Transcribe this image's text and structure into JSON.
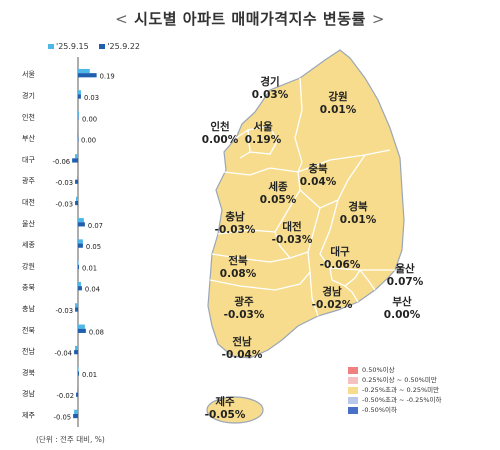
{
  "title": "시도별 아파트 매매가격지수 변동률",
  "title_left": "<",
  "title_right": ">",
  "unit_note": "(단위 : 전주 대비, %)",
  "colors": {
    "prev_series": "#4db8e8",
    "curr_series": "#1f5fae",
    "map_fill": "#f6dc8c",
    "map_stroke": "#ffffff",
    "map_outline": "#7a8ca8"
  },
  "chart_data": {
    "type": "bar",
    "orientation": "horizontal",
    "series": [
      {
        "name": "'25.9.15",
        "color": "#4db8e8",
        "values": [
          0.12,
          0.03,
          0.01,
          -0.01,
          -0.03,
          -0.01,
          -0.02,
          0.06,
          0.05,
          0.0,
          0.03,
          -0.03,
          0.07,
          -0.03,
          0.0,
          -0.01,
          -0.04
        ]
      },
      {
        "name": "'25.9.22",
        "color": "#1f5fae",
        "values": [
          0.19,
          0.03,
          0.0,
          0.0,
          -0.06,
          -0.03,
          -0.03,
          0.07,
          0.05,
          0.01,
          0.04,
          -0.03,
          0.08,
          -0.04,
          0.01,
          -0.02,
          -0.05
        ]
      }
    ],
    "categories": [
      "서울",
      "경기",
      "인천",
      "부산",
      "대구",
      "광주",
      "대전",
      "울산",
      "세종",
      "강원",
      "충북",
      "충남",
      "전북",
      "전남",
      "경북",
      "경남",
      "제주"
    ],
    "value_labels": [
      "0.19",
      "0.03",
      "0.00",
      "0.00",
      "-0.06",
      "-0.03",
      "-0.03",
      "0.07",
      "0.05",
      "0.01",
      "0.04",
      "-0.03",
      "0.08",
      "-0.04",
      "0.01",
      "-0.02",
      "-0.05"
    ]
  },
  "map": {
    "regions": [
      {
        "name": "경기",
        "value": "0.03%"
      },
      {
        "name": "강원",
        "value": "0.01%"
      },
      {
        "name": "인천",
        "value": "0.00%"
      },
      {
        "name": "서울",
        "value": "0.19%"
      },
      {
        "name": "충북",
        "value": "0.04%"
      },
      {
        "name": "세종",
        "value": "0.05%"
      },
      {
        "name": "경북",
        "value": "0.01%"
      },
      {
        "name": "충남",
        "value": "-0.03%"
      },
      {
        "name": "대전",
        "value": "-0.03%"
      },
      {
        "name": "대구",
        "value": "-0.06%"
      },
      {
        "name": "울산",
        "value": "0.07%"
      },
      {
        "name": "전북",
        "value": "0.08%"
      },
      {
        "name": "경남",
        "value": "-0.02%"
      },
      {
        "name": "광주",
        "value": "-0.03%"
      },
      {
        "name": "부산",
        "value": "0.00%"
      },
      {
        "name": "전남",
        "value": "-0.04%"
      },
      {
        "name": "제주",
        "value": "-0.05%"
      }
    ],
    "legend": [
      {
        "label": "0.50%이상",
        "color": "#f08080"
      },
      {
        "label": "0.25%이상 ~ 0.50%미만",
        "color": "#f7c0c0"
      },
      {
        "label": "-0.25%초과 ~ 0.25%미만",
        "color": "#f6dc8c"
      },
      {
        "label": "-0.50%초과 ~ -0.25%이하",
        "color": "#b9c8ea"
      },
      {
        "label": "-0.50%이하",
        "color": "#4a6fc9"
      }
    ]
  }
}
